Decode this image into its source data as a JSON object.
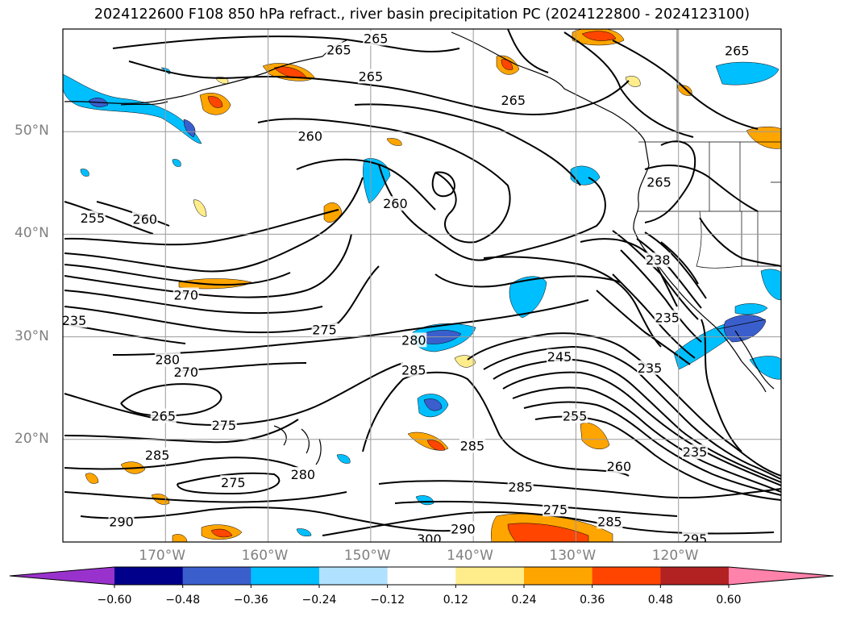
{
  "title": "2024122600 F108 850 hPa refract., river basin precipitation PC (2024122800 - 2024123100)",
  "map": {
    "lat_range": [
      10,
      60
    ],
    "lon_range": [
      -180,
      -110
    ],
    "lat_ticks": [
      {
        "value": 50,
        "label": "50°N"
      },
      {
        "value": 40,
        "label": "40°N"
      },
      {
        "value": 30,
        "label": "30°N"
      },
      {
        "value": 20,
        "label": "20°N"
      }
    ],
    "lon_ticks": [
      {
        "value": -170,
        "label": "170°W"
      },
      {
        "value": -160,
        "label": "160°W"
      },
      {
        "value": -150,
        "label": "150°W"
      },
      {
        "value": -140,
        "label": "140°W"
      },
      {
        "value": -130,
        "label": "130°W"
      },
      {
        "value": -120,
        "label": "120°W"
      }
    ],
    "contour_labels": [
      {
        "text": "265",
        "lon": -149.5,
        "lat": 59.1
      },
      {
        "text": "265",
        "lon": -153.1,
        "lat": 58.0
      },
      {
        "text": "265",
        "lon": -150.0,
        "lat": 55.4
      },
      {
        "text": "265",
        "lon": -114.3,
        "lat": 57.9
      },
      {
        "text": "265",
        "lon": -136.1,
        "lat": 53.1
      },
      {
        "text": "260",
        "lon": -155.9,
        "lat": 49.6
      },
      {
        "text": "260",
        "lon": -147.6,
        "lat": 43.0
      },
      {
        "text": "265",
        "lon": -121.9,
        "lat": 45.1
      },
      {
        "text": "255",
        "lon": -177.1,
        "lat": 41.6
      },
      {
        "text": "260",
        "lon": -172.0,
        "lat": 41.5
      },
      {
        "text": "270",
        "lon": -168.0,
        "lat": 34.1
      },
      {
        "text": "235",
        "lon": -178.9,
        "lat": 31.6
      },
      {
        "text": "275",
        "lon": -154.5,
        "lat": 30.7
      },
      {
        "text": "280",
        "lon": -145.8,
        "lat": 29.7
      },
      {
        "text": "280",
        "lon": -169.8,
        "lat": 27.8
      },
      {
        "text": "270",
        "lon": -168.0,
        "lat": 26.6
      },
      {
        "text": "285",
        "lon": -145.8,
        "lat": 26.8
      },
      {
        "text": "245",
        "lon": -131.6,
        "lat": 28.1
      },
      {
        "text": "235",
        "lon": -121.1,
        "lat": 31.9
      },
      {
        "text": "235",
        "lon": -122.8,
        "lat": 27.0
      },
      {
        "text": "238",
        "lon": -122.0,
        "lat": 37.5
      },
      {
        "text": "265",
        "lon": -170.2,
        "lat": 22.3
      },
      {
        "text": "275",
        "lon": -164.3,
        "lat": 21.4
      },
      {
        "text": "255",
        "lon": -130.1,
        "lat": 22.3
      },
      {
        "text": "285",
        "lon": -140.1,
        "lat": 19.4
      },
      {
        "text": "285",
        "lon": -170.8,
        "lat": 18.5
      },
      {
        "text": "260",
        "lon": -125.8,
        "lat": 17.4
      },
      {
        "text": "235",
        "lon": -118.4,
        "lat": 18.8
      },
      {
        "text": "275",
        "lon": -163.4,
        "lat": 15.8
      },
      {
        "text": "280",
        "lon": -156.6,
        "lat": 16.6
      },
      {
        "text": "285",
        "lon": -135.4,
        "lat": 15.4
      },
      {
        "text": "290",
        "lon": -174.3,
        "lat": 12.0
      },
      {
        "text": "275",
        "lon": -132.0,
        "lat": 13.2
      },
      {
        "text": "285",
        "lon": -126.7,
        "lat": 12.0
      },
      {
        "text": "290",
        "lon": -141.0,
        "lat": 11.3
      },
      {
        "text": "300",
        "lon": -144.3,
        "lat": 10.3
      },
      {
        "text": "295",
        "lon": -118.4,
        "lat": 10.3
      }
    ]
  },
  "colorbar": {
    "colors": [
      "#9932CC",
      "#00008B",
      "#3A5FCD",
      "#00BFFF",
      "#B0E2FF",
      "#FFFFFF",
      "#FFEC8B",
      "#FFA500",
      "#FF4500",
      "#B22222",
      "#FF82AB"
    ],
    "labels": [
      "−0.60",
      "−0.48",
      "−0.36",
      "−0.24",
      "−0.12",
      "0.12",
      "0.24",
      "0.36",
      "0.48",
      "0.60"
    ]
  },
  "style": {
    "frame": "#000000",
    "grid": "#9a9a9a",
    "contour": "#000000",
    "tick_label_color": "#808080"
  }
}
